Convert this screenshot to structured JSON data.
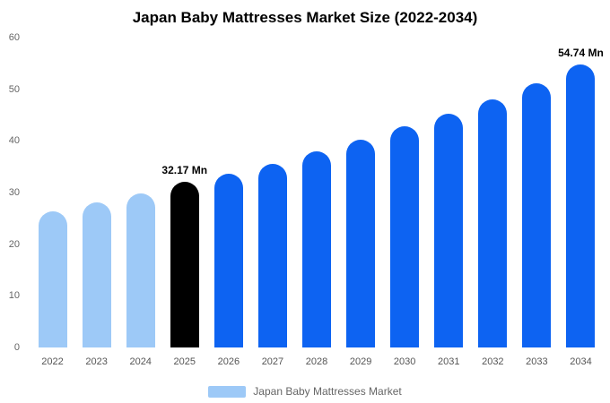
{
  "chart_data": {
    "type": "bar",
    "title": "Japan Baby Mattresses Market Size (2022-2034)",
    "xlabel": "",
    "ylabel": "",
    "ylim": [
      0,
      60
    ],
    "yticks": [
      0,
      10,
      20,
      30,
      40,
      50,
      60
    ],
    "grid": false,
    "categories": [
      "2022",
      "2023",
      "2024",
      "2025",
      "2026",
      "2027",
      "2028",
      "2029",
      "2030",
      "2031",
      "2032",
      "2033",
      "2034"
    ],
    "values": [
      26.3,
      28.1,
      29.9,
      32.17,
      33.7,
      35.6,
      37.9,
      40.2,
      42.8,
      45.3,
      48.0,
      51.1,
      54.74
    ],
    "colors": {
      "light": "#9dc9f7",
      "primary": "#0d63f2",
      "highlight": "#000000"
    },
    "bar_color_keys": [
      "light",
      "light",
      "light",
      "highlight",
      "primary",
      "primary",
      "primary",
      "primary",
      "primary",
      "primary",
      "primary",
      "primary",
      "primary"
    ],
    "annotations": [
      {
        "index": 3,
        "text": "32.17 Mn"
      },
      {
        "index": 12,
        "text": "54.74 Mn"
      }
    ]
  },
  "legend": {
    "label": "Japan Baby Mattresses Market",
    "swatch_color": "#9dc9f7"
  }
}
